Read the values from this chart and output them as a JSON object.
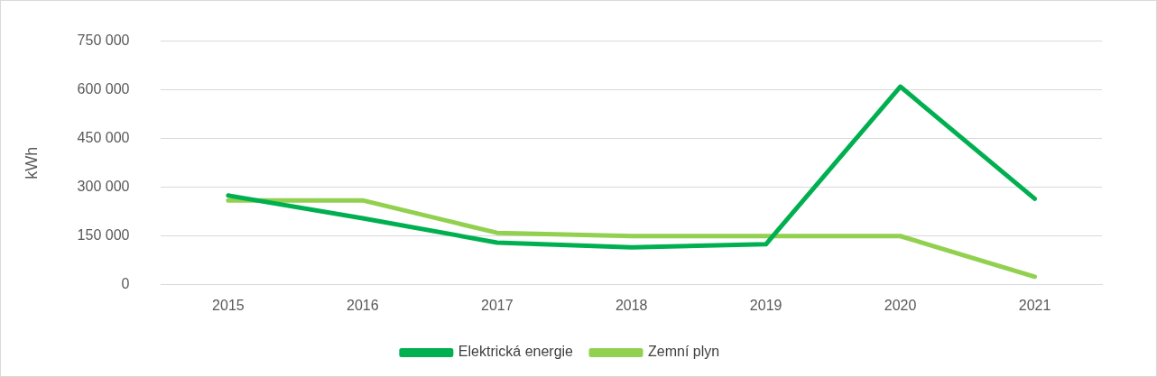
{
  "chart_data": {
    "type": "line",
    "ylabel": "kWh",
    "categories": [
      "2015",
      "2016",
      "2017",
      "2018",
      "2019",
      "2020",
      "2021"
    ],
    "series": [
      {
        "name": "Elektrická energie",
        "color": "#00b050",
        "values": [
          275000,
          205000,
          130000,
          115000,
          125000,
          610000,
          265000
        ]
      },
      {
        "name": "Zemní plyn",
        "color": "#92d050",
        "values": [
          260000,
          260000,
          160000,
          150000,
          150000,
          150000,
          25000
        ]
      }
    ],
    "ylim": [
      0,
      750000
    ],
    "yticks": [
      {
        "value": 0,
        "label": "0"
      },
      {
        "value": 150000,
        "label": "150 000"
      },
      {
        "value": 300000,
        "label": "300 000"
      },
      {
        "value": 450000,
        "label": "450 000"
      },
      {
        "value": 600000,
        "label": "600 000"
      },
      {
        "value": 750000,
        "label": "750 000"
      }
    ],
    "grid": "y",
    "legend": "bottom",
    "marker": "none",
    "line_style": "solid"
  }
}
